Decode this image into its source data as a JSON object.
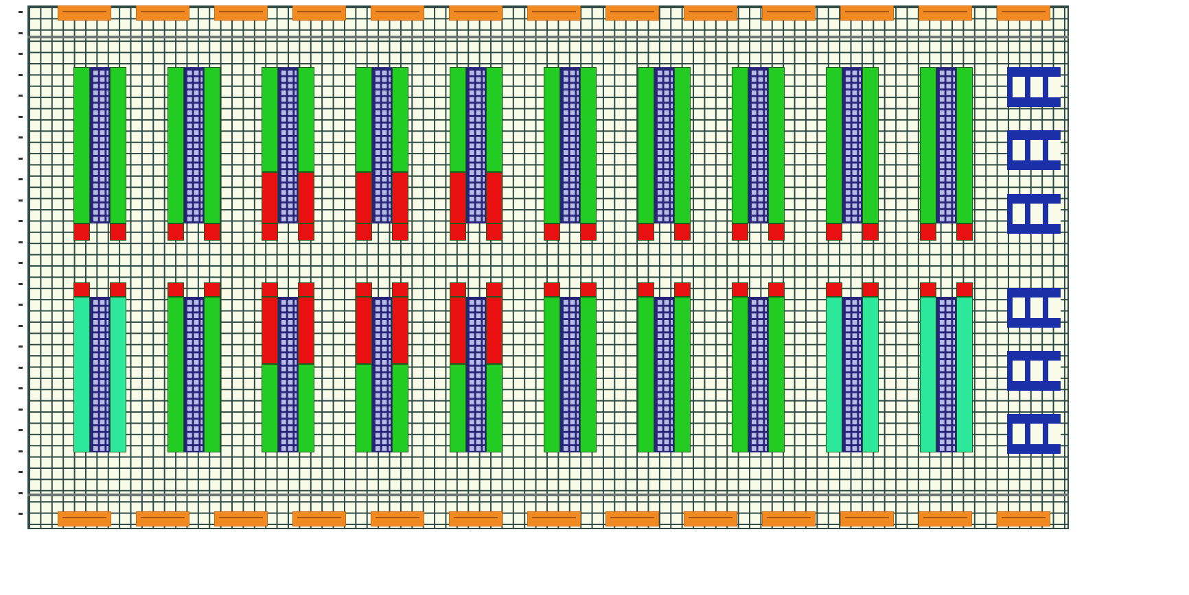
{
  "colors": {
    "grid_bg": "#f8fbe8",
    "grid_line": "#2f4a45",
    "dock": "#f28a24",
    "ok": "#22cc22",
    "alert": "#e81010",
    "standby": "#2de89a",
    "core": "#27247a",
    "module": "#1a2fa8"
  },
  "docks_top": 13,
  "docks_bottom": 13,
  "racks_top": [
    {
      "status": "ok",
      "alert_fraction": 0
    },
    {
      "status": "ok",
      "alert_fraction": 0
    },
    {
      "status": "ok",
      "alert_fraction": 0.33
    },
    {
      "status": "ok",
      "alert_fraction": 0.33
    },
    {
      "status": "ok",
      "alert_fraction": 0.33
    },
    {
      "status": "ok",
      "alert_fraction": 0
    },
    {
      "status": "ok",
      "alert_fraction": 0
    },
    {
      "status": "ok",
      "alert_fraction": 0
    },
    {
      "status": "ok",
      "alert_fraction": 0
    },
    {
      "status": "ok",
      "alert_fraction": 0
    }
  ],
  "racks_bottom": [
    {
      "status": "standby",
      "alert_fraction": 0
    },
    {
      "status": "ok",
      "alert_fraction": 0
    },
    {
      "status": "ok",
      "alert_fraction": 0.43
    },
    {
      "status": "ok",
      "alert_fraction": 0.43
    },
    {
      "status": "ok",
      "alert_fraction": 0.43
    },
    {
      "status": "ok",
      "alert_fraction": 0
    },
    {
      "status": "ok",
      "alert_fraction": 0
    },
    {
      "status": "ok",
      "alert_fraction": 0
    },
    {
      "status": "standby",
      "alert_fraction": 0
    },
    {
      "status": "standby",
      "alert_fraction": 0
    }
  ],
  "modules_top": 3,
  "modules_bottom": 3
}
